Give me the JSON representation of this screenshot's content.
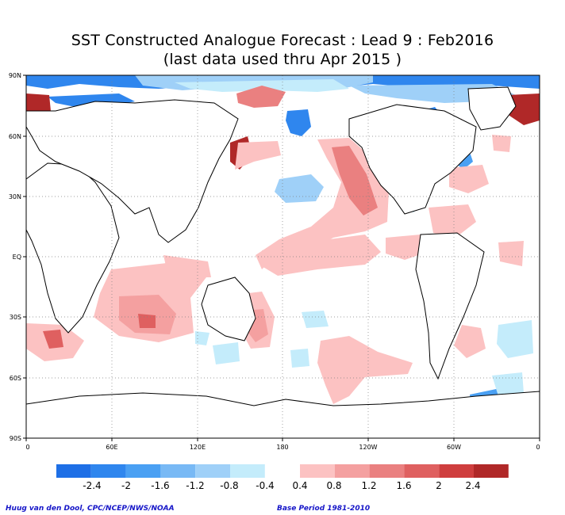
{
  "title": {
    "line1": "SST Constructed Analogue Forecast : Lead 9 : Feb2016",
    "line2": "(last data used thru Apr 2015 )"
  },
  "map": {
    "lat_labels": [
      "90N",
      "60N",
      "30N",
      "EQ",
      "30S",
      "60S",
      "90S"
    ],
    "lon_labels": [
      "0",
      "60E",
      "120E",
      "180",
      "120W",
      "60W",
      "0"
    ]
  },
  "colorbar": {
    "negative_labels": [
      "-2.4",
      "-2",
      "-1.6",
      "-1.2",
      "-0.8",
      "-0.4"
    ],
    "positive_labels": [
      "0.4",
      "0.8",
      "1.2",
      "1.6",
      "2",
      "2.4"
    ],
    "negative_colors": [
      "#1e6fe6",
      "#2f86ee",
      "#4aa0f3",
      "#78b9f5",
      "#9fd0f8",
      "#c4ecfb"
    ],
    "positive_colors": [
      "#fcc2c2",
      "#f4a0a0",
      "#ea8080",
      "#df6060",
      "#cf3e3e",
      "#b02828"
    ]
  },
  "credits": {
    "left": "Huug van den Dool, CPC/NCEP/NWS/NOAA",
    "right": "Base Period 1981-2010"
  }
}
